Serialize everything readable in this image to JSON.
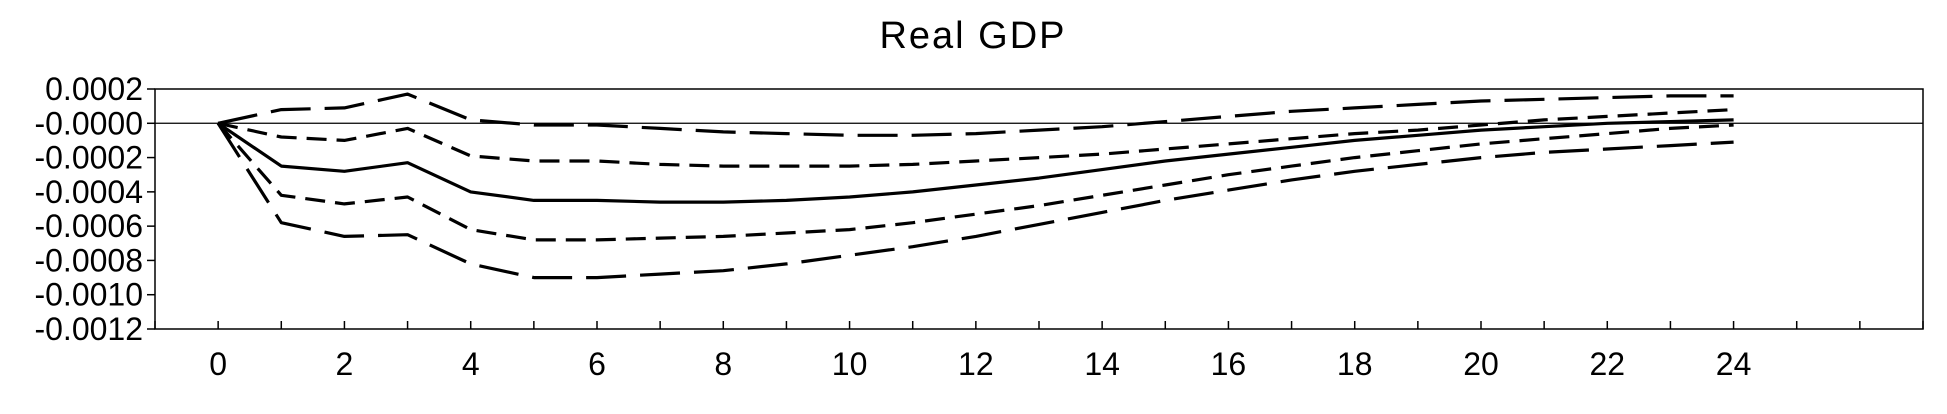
{
  "chart_data": {
    "type": "line",
    "title": "Real GDP",
    "xlabel": "",
    "ylabel": "",
    "x": [
      0,
      1,
      2,
      3,
      4,
      5,
      6,
      7,
      8,
      9,
      10,
      11,
      12,
      13,
      14,
      15,
      16,
      17,
      18,
      19,
      20,
      21,
      22,
      23,
      24
    ],
    "xticks": [
      0,
      2,
      4,
      6,
      8,
      10,
      12,
      14,
      16,
      18,
      20,
      22,
      24
    ],
    "xlim": [
      -1,
      27
    ],
    "yticks": [
      0.0002,
      0.0,
      -0.0002,
      -0.0004,
      -0.0006,
      -0.0008,
      -0.001,
      -0.0012
    ],
    "ytick_labels": [
      "0.0002",
      "-0.0000",
      "-0.0002",
      "-0.0004",
      "-0.0006",
      "-0.0008",
      "-0.0010",
      "-0.0012"
    ],
    "ylim": [
      -0.0012,
      0.0002
    ],
    "zero_line": true,
    "grid": false,
    "series": [
      {
        "style": "long-dash",
        "values": [
          0,
          8e-05,
          9e-05,
          0.00017,
          2e-05,
          -1e-05,
          -1e-05,
          -3e-05,
          -5e-05,
          -6e-05,
          -7e-05,
          -7e-05,
          -6e-05,
          -4e-05,
          -2e-05,
          1e-05,
          4e-05,
          7e-05,
          9e-05,
          0.00011,
          0.00013,
          0.00014,
          0.00015,
          0.00016,
          0.00016
        ]
      },
      {
        "style": "short-dash",
        "values": [
          0,
          -8e-05,
          -0.0001,
          -3e-05,
          -0.00019,
          -0.00022,
          -0.00022,
          -0.00024,
          -0.00025,
          -0.00025,
          -0.00025,
          -0.00024,
          -0.00022,
          -0.0002,
          -0.00018,
          -0.00015,
          -0.00012,
          -9e-05,
          -6e-05,
          -4e-05,
          -1e-05,
          2e-05,
          4e-05,
          6e-05,
          8e-05
        ]
      },
      {
        "style": "solid",
        "values": [
          0,
          -0.00025,
          -0.00028,
          -0.00023,
          -0.0004,
          -0.00045,
          -0.00045,
          -0.00046,
          -0.00046,
          -0.00045,
          -0.00043,
          -0.0004,
          -0.00036,
          -0.00032,
          -0.00027,
          -0.00022,
          -0.00018,
          -0.00014,
          -0.0001,
          -7e-05,
          -4e-05,
          -2e-05,
          0.0,
          1e-05,
          2e-05
        ]
      },
      {
        "style": "short-dash",
        "values": [
          0,
          -0.00042,
          -0.00047,
          -0.00043,
          -0.00062,
          -0.00068,
          -0.00068,
          -0.00067,
          -0.00066,
          -0.00064,
          -0.00062,
          -0.00058,
          -0.00053,
          -0.00048,
          -0.00042,
          -0.00036,
          -0.0003,
          -0.00025,
          -0.0002,
          -0.00016,
          -0.00012,
          -9e-05,
          -6e-05,
          -3e-05,
          -1e-05
        ]
      },
      {
        "style": "long-dash",
        "values": [
          0,
          -0.00058,
          -0.00066,
          -0.00065,
          -0.00082,
          -0.0009,
          -0.0009,
          -0.00088,
          -0.00086,
          -0.00082,
          -0.00077,
          -0.00072,
          -0.00066,
          -0.00059,
          -0.00052,
          -0.00045,
          -0.00039,
          -0.00033,
          -0.00028,
          -0.00024,
          -0.0002,
          -0.00017,
          -0.00015,
          -0.00013,
          -0.00011
        ]
      }
    ]
  }
}
